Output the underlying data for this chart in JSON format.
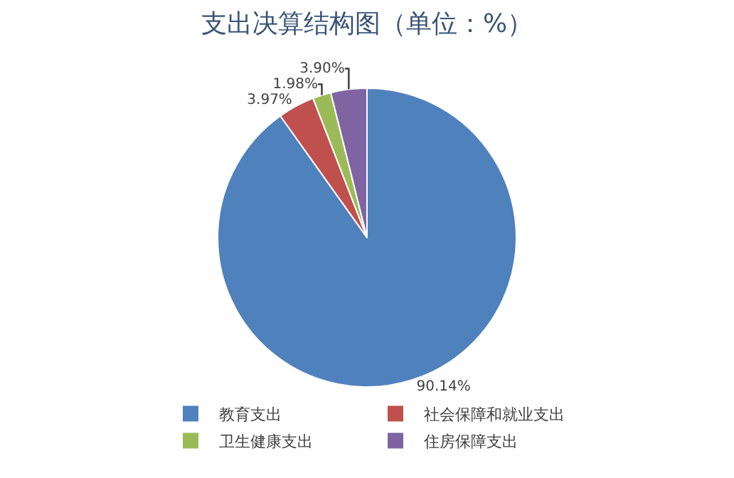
{
  "chart_data": {
    "type": "pie",
    "title": "支出决算结构图（单位：%）",
    "categories": [
      "教育支出",
      "社会保障和就业支出",
      "卫生健康支出",
      "住房保障支出"
    ],
    "values": [
      90.14,
      3.97,
      1.98,
      3.9
    ],
    "value_labels": [
      "90.14%",
      "3.97%",
      "1.98%",
      "3.90%"
    ],
    "colors": [
      "#4f81bd",
      "#c0504d",
      "#9bbb59",
      "#8064a2"
    ],
    "legend": "bottom"
  }
}
